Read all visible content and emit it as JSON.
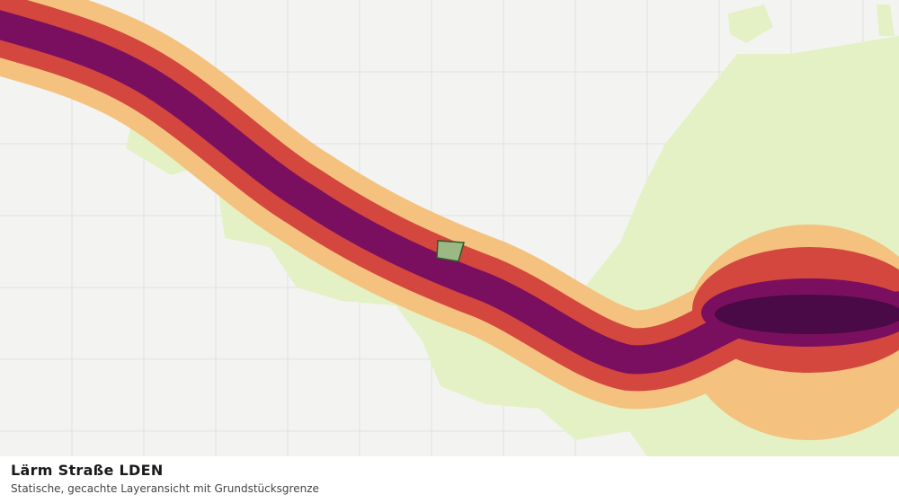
{
  "footer": {
    "title": "Lärm Straße LDEN",
    "subtitle": "Statische, gecachte Layeransicht mit Grundstücksgrenze"
  }
}
